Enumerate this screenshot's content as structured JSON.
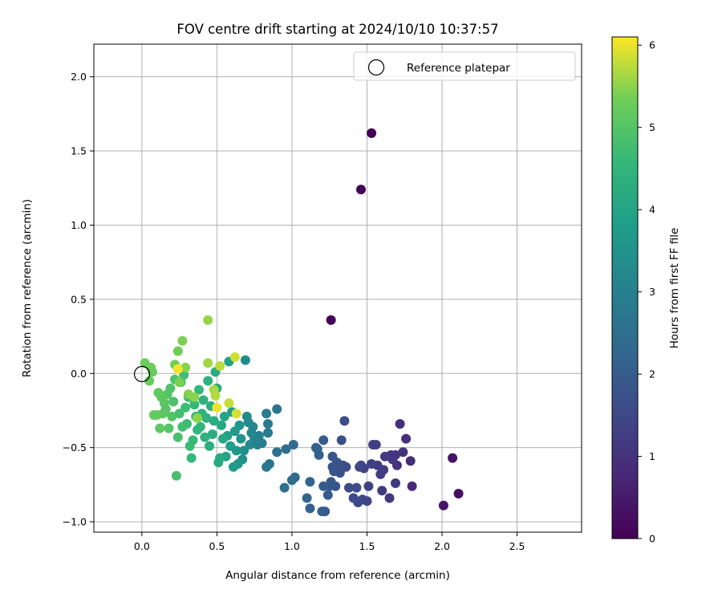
{
  "chart_data": {
    "type": "scatter",
    "title": "FOV centre drift starting at 2024/10/10 10:37:57",
    "xlabel": "Angular distance from reference (arcmin)",
    "ylabel": "Rotation from reference (arcmin)",
    "xlim": [
      -0.32,
      2.93
    ],
    "ylim": [
      -1.07,
      2.22
    ],
    "xticks": [
      0.0,
      0.5,
      1.0,
      1.5,
      2.0,
      2.5
    ],
    "xtick_labels": [
      "0.0",
      "0.5",
      "1.0",
      "1.5",
      "2.0",
      "2.5"
    ],
    "yticks": [
      -1.0,
      -0.5,
      0.0,
      0.5,
      1.0,
      1.5,
      2.0
    ],
    "ytick_labels": [
      "−1.0",
      "−0.5",
      "0.0",
      "0.5",
      "1.0",
      "1.5",
      "2.0"
    ],
    "grid": true,
    "colormap": "viridis",
    "colorbar": {
      "label": "Hours from first FF file",
      "range": [
        0,
        6.1
      ],
      "ticks": [
        0,
        1,
        2,
        3,
        4,
        5,
        6
      ],
      "tick_labels": [
        "0",
        "1",
        "2",
        "3",
        "4",
        "5",
        "6"
      ]
    },
    "legend": {
      "placement": "top-right",
      "entries": [
        "Reference platepar"
      ]
    },
    "reference_point": {
      "x": 0.0,
      "y": 0.0,
      "label": "Reference platepar"
    },
    "series": [
      {
        "points": [
          [
            1.53,
            1.62,
            0.05
          ],
          [
            1.46,
            1.24,
            0.05
          ],
          [
            1.26,
            0.36,
            0.08
          ],
          [
            2.11,
            -0.81,
            0.3
          ],
          [
            2.07,
            -0.57,
            0.35
          ],
          [
            2.01,
            -0.89,
            0.4
          ],
          [
            1.8,
            -0.76,
            0.8
          ],
          [
            1.79,
            -0.59,
            0.85
          ],
          [
            1.76,
            -0.44,
            0.9
          ],
          [
            1.72,
            -0.34,
            0.95
          ],
          [
            1.74,
            -0.53,
            1.0
          ],
          [
            1.7,
            -0.62,
            1.0
          ],
          [
            1.69,
            -0.55,
            1.05
          ],
          [
            1.67,
            -0.58,
            1.1
          ],
          [
            1.66,
            -0.55,
            1.1
          ],
          [
            1.65,
            -0.84,
            1.15
          ],
          [
            1.69,
            -0.74,
            1.15
          ],
          [
            1.62,
            -0.56,
            1.2
          ],
          [
            1.61,
            -0.65,
            1.2
          ],
          [
            1.6,
            -0.79,
            1.2
          ],
          [
            1.59,
            -0.68,
            1.25
          ],
          [
            1.57,
            -0.62,
            1.25
          ],
          [
            1.56,
            -0.48,
            1.3
          ],
          [
            1.54,
            -0.48,
            1.3
          ],
          [
            1.53,
            -0.61,
            1.35
          ],
          [
            1.51,
            -0.76,
            1.35
          ],
          [
            1.5,
            -0.86,
            1.4
          ],
          [
            1.48,
            -0.64,
            1.4
          ],
          [
            1.47,
            -0.85,
            1.45
          ],
          [
            1.46,
            -0.62,
            1.45
          ],
          [
            1.45,
            -0.63,
            1.5
          ],
          [
            1.44,
            -0.87,
            1.5
          ],
          [
            1.43,
            -0.77,
            1.55
          ],
          [
            1.41,
            -0.84,
            1.55
          ],
          [
            1.38,
            -0.77,
            1.6
          ],
          [
            1.36,
            -0.63,
            1.6
          ],
          [
            1.35,
            -0.32,
            1.65
          ],
          [
            1.34,
            -0.62,
            1.65
          ],
          [
            1.33,
            -0.45,
            1.7
          ],
          [
            1.32,
            -0.67,
            1.7
          ],
          [
            1.31,
            -0.64,
            1.75
          ],
          [
            1.3,
            -0.6,
            1.75
          ],
          [
            1.29,
            -0.76,
            1.8
          ],
          [
            1.28,
            -0.66,
            1.8
          ],
          [
            1.27,
            -0.63,
            1.85
          ],
          [
            1.27,
            -0.56,
            1.85
          ],
          [
            1.26,
            -0.73,
            1.9
          ],
          [
            1.25,
            -0.76,
            1.9
          ],
          [
            1.24,
            -0.82,
            1.95
          ],
          [
            1.22,
            -0.93,
            1.95
          ],
          [
            1.21,
            -0.76,
            2.0
          ],
          [
            1.21,
            -0.45,
            2.0
          ],
          [
            1.2,
            -0.93,
            2.05
          ],
          [
            1.18,
            -0.55,
            2.05
          ],
          [
            1.17,
            -0.51,
            2.1
          ],
          [
            1.16,
            -0.5,
            2.1
          ],
          [
            1.12,
            -0.91,
            2.15
          ],
          [
            1.12,
            -0.73,
            2.2
          ],
          [
            1.1,
            -0.84,
            2.25
          ],
          [
            1.02,
            -0.7,
            2.3
          ],
          [
            1.01,
            -0.48,
            2.35
          ],
          [
            1.0,
            -0.72,
            2.4
          ],
          [
            0.96,
            -0.51,
            2.45
          ],
          [
            0.95,
            -0.77,
            2.5
          ],
          [
            0.9,
            -0.53,
            2.55
          ],
          [
            0.9,
            -0.24,
            2.6
          ],
          [
            0.85,
            -0.61,
            2.65
          ],
          [
            0.83,
            -0.63,
            2.7
          ],
          [
            0.84,
            -0.34,
            2.75
          ],
          [
            0.84,
            -0.4,
            2.8
          ],
          [
            0.83,
            -0.27,
            2.85
          ],
          [
            0.8,
            -0.47,
            2.9
          ],
          [
            0.78,
            -0.42,
            2.95
          ],
          [
            0.77,
            -0.48,
            3.0
          ],
          [
            0.75,
            -0.44,
            3.05
          ],
          [
            0.74,
            -0.36,
            3.1
          ],
          [
            0.73,
            -0.4,
            3.15
          ],
          [
            0.72,
            -0.48,
            3.2
          ],
          [
            0.71,
            -0.33,
            3.25
          ],
          [
            0.7,
            -0.29,
            3.3
          ],
          [
            0.69,
            0.09,
            3.35
          ],
          [
            0.68,
            -0.52,
            3.4
          ],
          [
            0.67,
            -0.58,
            3.45
          ],
          [
            0.66,
            -0.44,
            3.5
          ],
          [
            0.65,
            -0.35,
            3.55
          ],
          [
            0.64,
            -0.61,
            3.6
          ],
          [
            0.63,
            -0.52,
            3.65
          ],
          [
            0.62,
            -0.39,
            3.7
          ],
          [
            0.61,
            -0.63,
            3.75
          ],
          [
            0.6,
            -0.26,
            3.8
          ],
          [
            0.59,
            -0.49,
            3.85
          ],
          [
            0.58,
            0.08,
            3.9
          ],
          [
            0.57,
            -0.42,
            3.95
          ],
          [
            0.56,
            -0.56,
            4.0
          ],
          [
            0.55,
            -0.29,
            4.05
          ],
          [
            0.54,
            -0.44,
            4.1
          ],
          [
            0.53,
            -0.35,
            4.1
          ],
          [
            0.52,
            -0.57,
            4.15
          ],
          [
            0.51,
            -0.6,
            4.15
          ],
          [
            0.5,
            -0.1,
            4.2
          ],
          [
            0.49,
            0.01,
            4.2
          ],
          [
            0.48,
            -0.32,
            4.25
          ],
          [
            0.47,
            -0.41,
            4.25
          ],
          [
            0.46,
            -0.22,
            4.3
          ],
          [
            0.45,
            -0.49,
            4.3
          ],
          [
            0.44,
            -0.05,
            4.35
          ],
          [
            0.43,
            -0.3,
            4.35
          ],
          [
            0.42,
            -0.43,
            4.4
          ],
          [
            0.41,
            -0.18,
            4.4
          ],
          [
            0.4,
            -0.27,
            4.45
          ],
          [
            0.39,
            -0.36,
            4.45
          ],
          [
            0.38,
            -0.11,
            4.5
          ],
          [
            0.37,
            -0.38,
            4.5
          ],
          [
            0.36,
            -0.29,
            4.55
          ],
          [
            0.35,
            -0.21,
            4.55
          ],
          [
            0.34,
            -0.45,
            4.6
          ],
          [
            0.33,
            -0.57,
            4.6
          ],
          [
            0.32,
            -0.49,
            4.65
          ],
          [
            0.31,
            -0.16,
            4.65
          ],
          [
            0.3,
            -0.34,
            4.7
          ],
          [
            0.29,
            -0.23,
            4.7
          ],
          [
            0.28,
            -0.01,
            4.75
          ],
          [
            0.27,
            -0.36,
            4.75
          ],
          [
            0.26,
            -0.06,
            4.8
          ],
          [
            0.25,
            -0.27,
            4.8
          ],
          [
            0.24,
            -0.43,
            4.85
          ],
          [
            0.23,
            -0.69,
            4.85
          ],
          [
            0.22,
            -0.04,
            4.9
          ],
          [
            0.21,
            -0.19,
            4.9
          ],
          [
            0.2,
            -0.29,
            4.95
          ],
          [
            0.19,
            -0.1,
            4.95
          ],
          [
            0.18,
            -0.37,
            5.0
          ],
          [
            0.17,
            -0.14,
            5.0
          ],
          [
            0.16,
            -0.24,
            5.05
          ],
          [
            0.15,
            -0.2,
            5.05
          ],
          [
            0.14,
            -0.27,
            5.1
          ],
          [
            0.13,
            -0.16,
            5.1
          ],
          [
            0.12,
            -0.37,
            5.15
          ],
          [
            0.11,
            -0.13,
            5.15
          ],
          [
            0.1,
            -0.28,
            5.2
          ],
          [
            0.08,
            -0.28,
            5.2
          ],
          [
            0.07,
            0.01,
            5.25
          ],
          [
            0.05,
            -0.05,
            5.25
          ],
          [
            0.02,
            0.07,
            5.3
          ],
          [
            0.06,
            0.04,
            5.3
          ],
          [
            0.22,
            0.06,
            5.35
          ],
          [
            0.24,
            0.15,
            5.35
          ],
          [
            0.27,
            0.22,
            5.4
          ],
          [
            0.25,
            -0.06,
            5.4
          ],
          [
            0.29,
            0.04,
            5.45
          ],
          [
            0.31,
            -0.14,
            5.45
          ],
          [
            0.35,
            -0.16,
            5.5
          ],
          [
            0.37,
            -0.3,
            5.5
          ],
          [
            0.44,
            0.36,
            5.55
          ],
          [
            0.44,
            0.07,
            5.6
          ],
          [
            0.48,
            -0.11,
            5.65
          ],
          [
            0.49,
            -0.15,
            5.7
          ],
          [
            0.52,
            0.05,
            5.75
          ],
          [
            0.58,
            -0.2,
            5.8
          ],
          [
            0.62,
            0.11,
            5.85
          ],
          [
            0.63,
            -0.27,
            5.9
          ],
          [
            0.5,
            -0.23,
            6.0
          ],
          [
            0.24,
            0.03,
            6.05
          ]
        ]
      }
    ]
  }
}
